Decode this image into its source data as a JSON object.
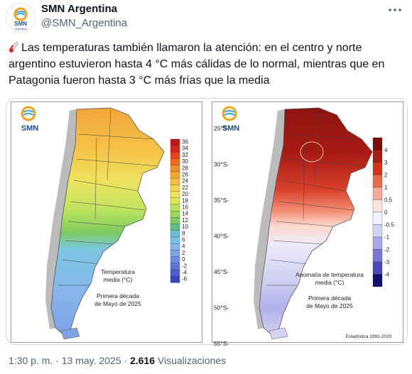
{
  "author": {
    "name": "SMN Argentina",
    "handle": "@SMN_Argentina",
    "avatar_text": "SMN",
    "avatar_sub": "Argentina"
  },
  "tweet": {
    "text": "Las temperaturas también llamaron la atención: en el centro y norte argentino estuvieron hasta 4 °C más cálidas de lo normal, mientras que en Patagonia fueron hasta 3 °C más frías que la media"
  },
  "maps": {
    "left": {
      "logo": "SMN",
      "title_line1": "Temperatura",
      "title_line2": "media (°C)",
      "period_line1": "Primera década",
      "period_line2": "de Mayo de 2025",
      "scale": [
        "36",
        "34",
        "32",
        "30",
        "28",
        "26",
        "24",
        "22",
        "20",
        "18",
        "16",
        "14",
        "12",
        "10",
        "8",
        "6",
        "4",
        "2",
        "0",
        "-2",
        "-4",
        "-6"
      ],
      "scale_colors": [
        "#c0161b",
        "#d8261f",
        "#e4431e",
        "#ec6a22",
        "#f08c2b",
        "#f3a735",
        "#f5c043",
        "#f4d553",
        "#eee35f",
        "#d9e860",
        "#bde35f",
        "#9fd85e",
        "#7ecb63",
        "#60be8a",
        "#6cbfd3",
        "#7bbfe6",
        "#86b6ec",
        "#7fa3e6",
        "#6e8de0",
        "#5f76d8",
        "#4d5ecd",
        "#3a45c0"
      ]
    },
    "right": {
      "logo": "SMN",
      "lat_labels": [
        "25°S-",
        "30°S-",
        "35°S-",
        "40°S-",
        "45°S-",
        "50°S-",
        "55°S-"
      ],
      "title_line1": "Anomalía de temperatura",
      "title_line2": "media (°C)",
      "period_line1": "Primera década",
      "period_line2": "de Mayo de 2025",
      "source": "Estadística 1991-2020",
      "scale": [
        "4",
        "3",
        "2",
        "1",
        "0.5",
        "0",
        "-0.5",
        "-1",
        "-2",
        "-3",
        "-4"
      ],
      "scale_colors": [
        "#7a0d0d",
        "#a81a14",
        "#d3321f",
        "#ea6a4e",
        "#f6a99a",
        "#fde3dd",
        "#f1f1ff",
        "#d2d2f2",
        "#a8a8e6",
        "#7777d4",
        "#4848bc",
        "#101070"
      ]
    }
  },
  "meta": {
    "time": "1:30 p. m.",
    "sep1": "·",
    "date": "13 may. 2025",
    "sep2": "·",
    "views_count": "2.616",
    "views_label": "Visualizaciones"
  }
}
